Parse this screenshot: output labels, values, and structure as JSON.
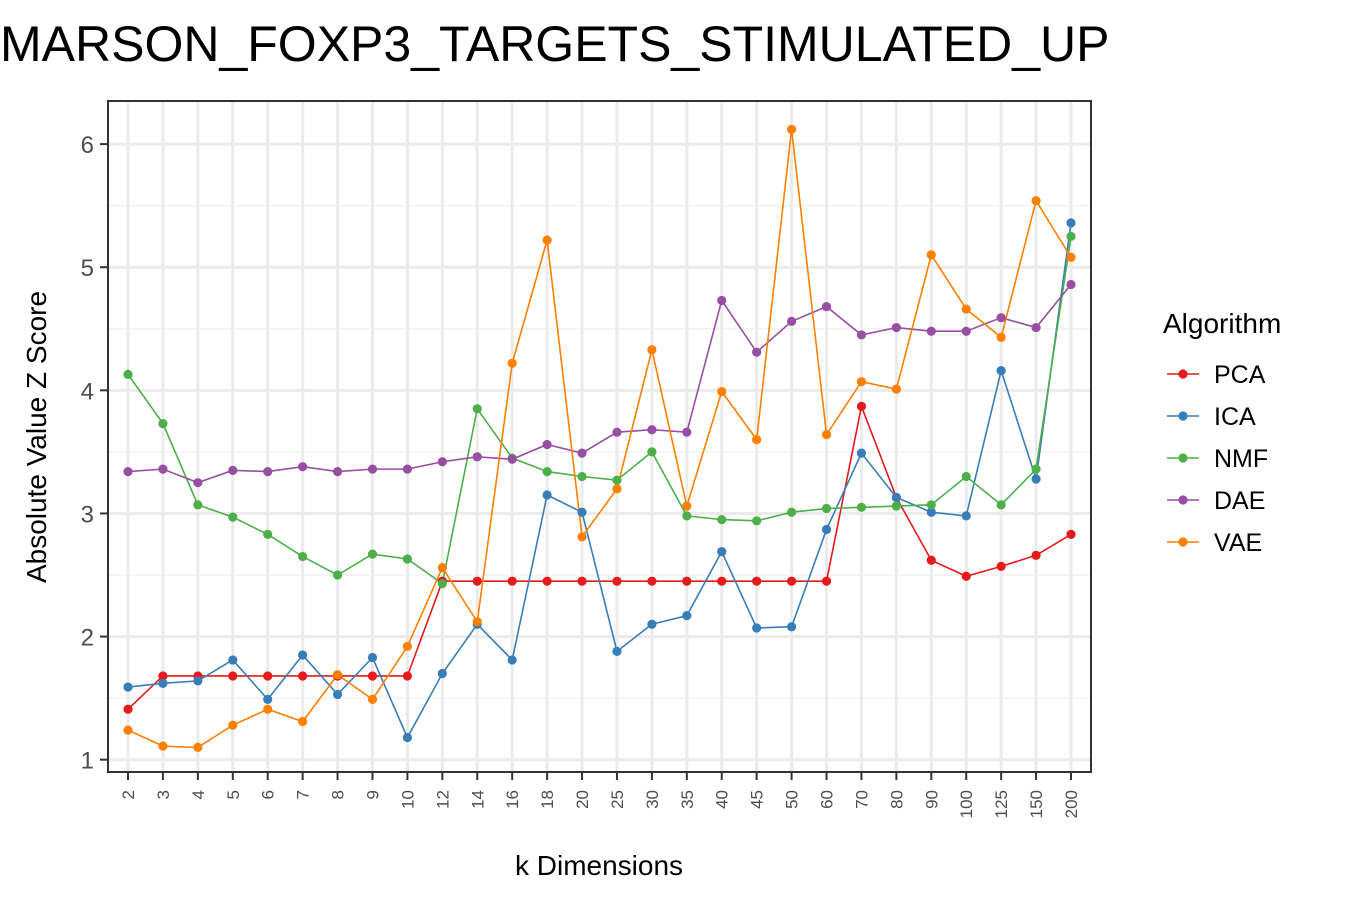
{
  "chart_data": {
    "type": "line",
    "title": "MARSON_FOXP3_TARGETS_STIMULATED_UP",
    "xlabel": "k Dimensions",
    "ylabel": "Absolute Value Z Score",
    "categories": [
      "2",
      "3",
      "4",
      "5",
      "6",
      "7",
      "8",
      "9",
      "10",
      "12",
      "14",
      "16",
      "18",
      "20",
      "25",
      "30",
      "35",
      "40",
      "45",
      "50",
      "60",
      "70",
      "80",
      "90",
      "100",
      "125",
      "150",
      "200"
    ],
    "yticks": [
      1,
      2,
      3,
      4,
      5,
      6
    ],
    "ylim": [
      0.9,
      6.35
    ],
    "grid": true,
    "legend": {
      "title": "Algorithm",
      "position": "right"
    },
    "series": [
      {
        "name": "PCA",
        "color": "#E41A1C",
        "values": [
          1.41,
          1.68,
          1.68,
          1.68,
          1.68,
          1.68,
          1.68,
          1.68,
          1.68,
          2.45,
          2.45,
          2.45,
          2.45,
          2.45,
          2.45,
          2.45,
          2.45,
          2.45,
          2.45,
          2.45,
          2.45,
          3.87,
          3.13,
          2.62,
          2.49,
          2.57,
          2.66,
          2.83
        ]
      },
      {
        "name": "ICA",
        "color": "#377EB8",
        "values": [
          1.59,
          1.62,
          1.64,
          1.81,
          1.49,
          1.85,
          1.53,
          1.83,
          1.18,
          1.7,
          2.1,
          1.81,
          3.15,
          3.01,
          1.88,
          2.1,
          2.17,
          2.69,
          2.07,
          2.08,
          2.87,
          3.49,
          3.13,
          3.01,
          2.98,
          4.16,
          3.28,
          5.36
        ]
      },
      {
        "name": "NMF",
        "color": "#4DAF4A",
        "values": [
          4.13,
          3.73,
          3.07,
          2.97,
          2.83,
          2.65,
          2.5,
          2.67,
          2.63,
          2.43,
          3.85,
          3.45,
          3.34,
          3.3,
          3.27,
          3.5,
          2.98,
          2.95,
          2.94,
          3.01,
          3.04,
          3.05,
          3.06,
          3.07,
          3.3,
          3.07,
          3.36,
          5.25
        ]
      },
      {
        "name": "DAE",
        "color": "#984EA3",
        "values": [
          3.34,
          3.36,
          3.25,
          3.35,
          3.34,
          3.38,
          3.34,
          3.36,
          3.36,
          3.42,
          3.46,
          3.44,
          3.56,
          3.49,
          3.66,
          3.68,
          3.66,
          4.73,
          4.31,
          4.56,
          4.68,
          4.45,
          4.51,
          4.48,
          4.48,
          4.59,
          4.51,
          4.86
        ]
      },
      {
        "name": "VAE",
        "color": "#FF7F00",
        "values": [
          1.24,
          1.11,
          1.1,
          1.28,
          1.41,
          1.31,
          1.69,
          1.49,
          1.92,
          2.56,
          2.12,
          4.22,
          5.22,
          2.81,
          3.2,
          4.33,
          3.06,
          3.99,
          3.6,
          6.12,
          3.64,
          4.07,
          4.01,
          5.1,
          4.66,
          4.43,
          5.54,
          5.08
        ]
      }
    ]
  }
}
